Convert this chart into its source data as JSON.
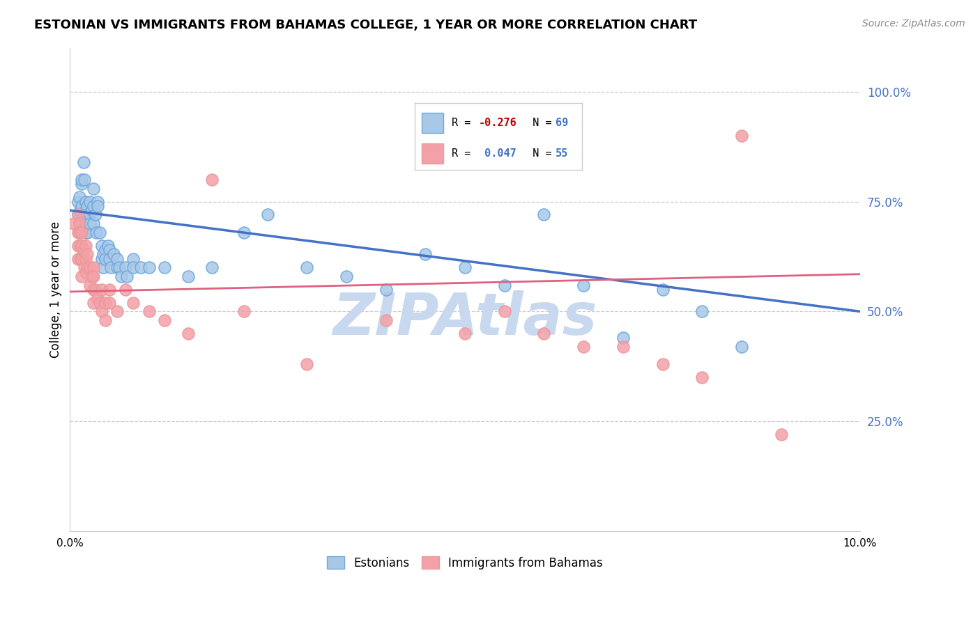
{
  "title": "ESTONIAN VS IMMIGRANTS FROM BAHAMAS COLLEGE, 1 YEAR OR MORE CORRELATION CHART",
  "source": "Source: ZipAtlas.com",
  "ylabel": "College, 1 year or more",
  "right_yticks": [
    "100.0%",
    "75.0%",
    "50.0%",
    "25.0%"
  ],
  "right_ytick_vals": [
    1.0,
    0.75,
    0.5,
    0.25
  ],
  "legend_blue_label": "Estonians",
  "legend_pink_label": "Immigrants from Bahamas",
  "blue_color": "#a8c8e8",
  "pink_color": "#f4a0a8",
  "blue_edge_color": "#6fa8dc",
  "pink_edge_color": "#ea9999",
  "blue_line_color": "#4472c4",
  "pink_line_color": "#e06080",
  "watermark_color": "#c8d8ee",
  "blue_scatter_x": [
    0.001,
    0.001,
    0.0012,
    0.0012,
    0.0013,
    0.0015,
    0.0015,
    0.0015,
    0.0015,
    0.0017,
    0.0018,
    0.002,
    0.002,
    0.002,
    0.002,
    0.0022,
    0.0022,
    0.0022,
    0.0025,
    0.0025,
    0.0025,
    0.0028,
    0.003,
    0.003,
    0.003,
    0.0032,
    0.0033,
    0.0035,
    0.0035,
    0.0038,
    0.004,
    0.004,
    0.0042,
    0.0042,
    0.0045,
    0.0045,
    0.0048,
    0.005,
    0.005,
    0.0052,
    0.0055,
    0.006,
    0.006,
    0.0062,
    0.0065,
    0.007,
    0.0072,
    0.008,
    0.008,
    0.009,
    0.01,
    0.012,
    0.015,
    0.018,
    0.022,
    0.025,
    0.03,
    0.035,
    0.04,
    0.045,
    0.05,
    0.055,
    0.06,
    0.065,
    0.07,
    0.075,
    0.08,
    0.085
  ],
  "blue_scatter_y": [
    0.75,
    0.72,
    0.7,
    0.76,
    0.73,
    0.71,
    0.74,
    0.79,
    0.8,
    0.84,
    0.8,
    0.75,
    0.73,
    0.7,
    0.68,
    0.74,
    0.72,
    0.68,
    0.75,
    0.72,
    0.7,
    0.73,
    0.78,
    0.74,
    0.7,
    0.72,
    0.68,
    0.75,
    0.74,
    0.68,
    0.65,
    0.62,
    0.63,
    0.6,
    0.64,
    0.62,
    0.65,
    0.64,
    0.62,
    0.6,
    0.63,
    0.6,
    0.62,
    0.6,
    0.58,
    0.6,
    0.58,
    0.62,
    0.6,
    0.6,
    0.6,
    0.6,
    0.58,
    0.6,
    0.68,
    0.72,
    0.6,
    0.58,
    0.55,
    0.63,
    0.6,
    0.56,
    0.72,
    0.56,
    0.44,
    0.55,
    0.5,
    0.42
  ],
  "pink_scatter_x": [
    0.0005,
    0.001,
    0.001,
    0.001,
    0.001,
    0.0012,
    0.0012,
    0.0013,
    0.0013,
    0.0015,
    0.0015,
    0.0015,
    0.0015,
    0.0017,
    0.0018,
    0.002,
    0.002,
    0.002,
    0.0022,
    0.0022,
    0.0025,
    0.0025,
    0.0028,
    0.003,
    0.003,
    0.003,
    0.003,
    0.0032,
    0.0035,
    0.0038,
    0.004,
    0.004,
    0.0045,
    0.0045,
    0.005,
    0.005,
    0.006,
    0.007,
    0.008,
    0.01,
    0.012,
    0.015,
    0.018,
    0.022,
    0.03,
    0.04,
    0.05,
    0.055,
    0.06,
    0.065,
    0.07,
    0.075,
    0.08,
    0.085,
    0.09
  ],
  "pink_scatter_y": [
    0.7,
    0.72,
    0.68,
    0.65,
    0.62,
    0.7,
    0.68,
    0.65,
    0.62,
    0.68,
    0.65,
    0.62,
    0.58,
    0.64,
    0.6,
    0.65,
    0.62,
    0.59,
    0.63,
    0.6,
    0.6,
    0.56,
    0.58,
    0.6,
    0.58,
    0.55,
    0.52,
    0.55,
    0.53,
    0.52,
    0.55,
    0.5,
    0.52,
    0.48,
    0.55,
    0.52,
    0.5,
    0.55,
    0.52,
    0.5,
    0.48,
    0.45,
    0.8,
    0.5,
    0.38,
    0.48,
    0.45,
    0.5,
    0.45,
    0.42,
    0.42,
    0.38,
    0.35,
    0.9,
    0.22
  ],
  "xlim": [
    0.0,
    0.1
  ],
  "ylim": [
    0.0,
    1.1
  ],
  "blue_line_x": [
    0.0,
    0.1
  ],
  "blue_line_y": [
    0.73,
    0.5
  ],
  "pink_line_x": [
    0.0,
    0.1
  ],
  "pink_line_y": [
    0.545,
    0.585
  ],
  "xtick_positions": [
    0.0,
    0.025,
    0.05,
    0.075,
    0.1
  ],
  "xtick_labels": [
    "0.0%",
    "",
    "",
    "",
    "10.0%"
  ]
}
